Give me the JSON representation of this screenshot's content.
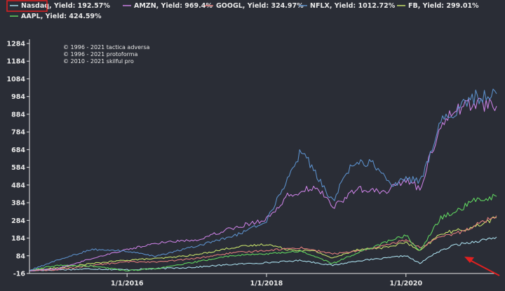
{
  "chart_data": {
    "type": "line",
    "title": "",
    "xlabel": "",
    "ylabel": "",
    "ylim": [
      -16,
      1284
    ],
    "y_ticks": [
      -16,
      84,
      184,
      284,
      384,
      484,
      584,
      684,
      784,
      884,
      984,
      1084,
      1184,
      1284
    ],
    "x_ticks": [
      {
        "label": "1/1/2016",
        "t": 2016.0
      },
      {
        "label": "1/1/2018",
        "t": 2018.0
      },
      {
        "label": "1/1/2020",
        "t": 2020.0
      }
    ],
    "x_range": [
      2014.6,
      2021.3
    ],
    "grid": false,
    "legend_position": "top",
    "copyright": [
      "© 1996 - 2021 tactica adversa",
      "© 1996 - 2021 protoforma",
      "© 2010 - 2021 skilful pro"
    ],
    "highlight": {
      "legend_box_around": "Nasdaq",
      "arrow_target_series": "Nasdaq"
    },
    "series": [
      {
        "name": "Nasdaq",
        "legend_label": "Nasdaq, Yield: 192.57%",
        "color": "#a8dcea",
        "x": [
          2014.6,
          2015.0,
          2015.5,
          2016.0,
          2016.5,
          2017.0,
          2017.5,
          2018.0,
          2018.5,
          2018.95,
          2019.3,
          2019.7,
          2020.0,
          2020.2,
          2020.4,
          2020.7,
          2021.0,
          2021.3
        ],
        "values": [
          0,
          5,
          10,
          5,
          12,
          20,
          35,
          45,
          58,
          30,
          55,
          70,
          85,
          40,
          95,
          145,
          165,
          190
        ]
      },
      {
        "name": "AMZN",
        "legend_label": "AMZN, Yield: 969.4%",
        "color": "#c77fe0",
        "x": [
          2014.6,
          2015.0,
          2015.5,
          2016.0,
          2016.5,
          2017.0,
          2017.5,
          2018.0,
          2018.3,
          2018.7,
          2018.95,
          2019.3,
          2019.7,
          2020.0,
          2020.2,
          2020.5,
          2020.7,
          2021.0,
          2021.3
        ],
        "values": [
          0,
          10,
          70,
          120,
          160,
          175,
          240,
          290,
          420,
          480,
          360,
          460,
          440,
          520,
          460,
          830,
          910,
          950,
          930
        ]
      },
      {
        "name": "GOOGL",
        "legend_label": "GOOGL, Yield: 324.97%",
        "color": "#e07c7c",
        "x": [
          2014.6,
          2015.0,
          2015.5,
          2016.0,
          2016.5,
          2017.0,
          2017.5,
          2018.0,
          2018.5,
          2018.95,
          2019.3,
          2019.7,
          2020.0,
          2020.2,
          2020.5,
          2020.8,
          2021.0,
          2021.3
        ],
        "values": [
          0,
          5,
          30,
          50,
          50,
          70,
          100,
          115,
          130,
          95,
          110,
          140,
          175,
          130,
          190,
          220,
          260,
          310
        ]
      },
      {
        "name": "NFLX",
        "legend_label": "NFLX, Yield: 1012.72%",
        "color": "#5b8fc9",
        "x": [
          2014.6,
          2015.0,
          2015.5,
          2016.0,
          2016.4,
          2017.0,
          2017.5,
          2018.0,
          2018.3,
          2018.5,
          2018.95,
          2019.2,
          2019.5,
          2019.8,
          2020.0,
          2020.2,
          2020.5,
          2020.8,
          2021.0,
          2021.3
        ],
        "values": [
          0,
          60,
          120,
          110,
          80,
          140,
          190,
          280,
          520,
          680,
          390,
          590,
          620,
          480,
          520,
          500,
          840,
          920,
          980,
          1000
        ]
      },
      {
        "name": "FB",
        "legend_label": "FB, Yield: 299.01%",
        "color": "#c5e06a",
        "x": [
          2014.6,
          2015.0,
          2015.5,
          2016.0,
          2016.5,
          2017.0,
          2017.5,
          2018.0,
          2018.3,
          2018.7,
          2018.95,
          2019.3,
          2019.7,
          2020.0,
          2020.2,
          2020.5,
          2020.8,
          2021.0,
          2021.3
        ],
        "values": [
          0,
          15,
          40,
          60,
          70,
          90,
          130,
          150,
          120,
          110,
          70,
          120,
          130,
          160,
          110,
          210,
          230,
          250,
          300
        ]
      },
      {
        "name": "AAPL",
        "legend_label": "AAPL, Yield: 424.59%",
        "color": "#5fd35f",
        "x": [
          2014.6,
          2015.0,
          2015.5,
          2016.0,
          2016.5,
          2017.0,
          2017.5,
          2018.0,
          2018.5,
          2018.95,
          2019.3,
          2019.7,
          2020.0,
          2020.2,
          2020.5,
          2020.7,
          2021.0,
          2021.3
        ],
        "values": [
          0,
          30,
          25,
          0,
          15,
          50,
          85,
          95,
          110,
          40,
          100,
          160,
          200,
          110,
          300,
          330,
          400,
          420
        ]
      }
    ]
  }
}
